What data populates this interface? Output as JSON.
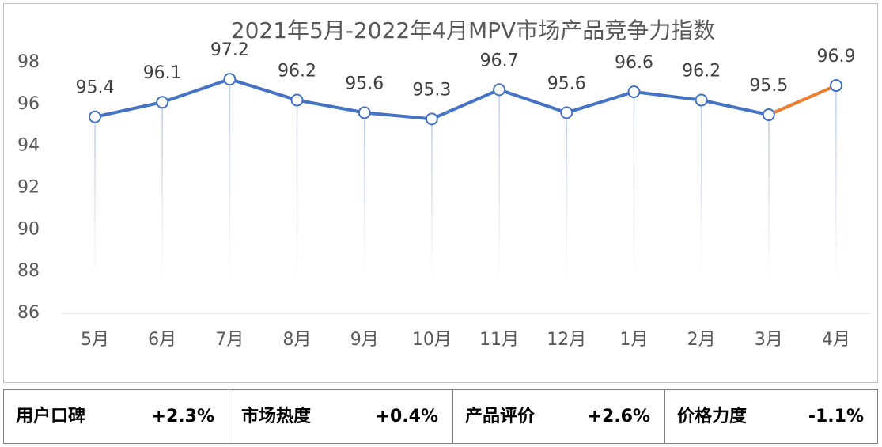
{
  "chart_data": {
    "type": "line",
    "title": "2021年5月-2022年4月MPV市场产品竞争力指数",
    "categories": [
      "5月",
      "6月",
      "7月",
      "8月",
      "9月",
      "10月",
      "11月",
      "12月",
      "1月",
      "2月",
      "3月",
      "4月"
    ],
    "values": [
      95.4,
      96.1,
      97.2,
      96.2,
      95.6,
      95.3,
      96.7,
      95.6,
      96.6,
      96.2,
      95.5,
      96.9
    ],
    "color": "#4472c4",
    "last_segment_color": "#ed7d31",
    "ylim": [
      86,
      98
    ],
    "yticks": [
      86,
      88,
      90,
      92,
      94,
      96,
      98
    ],
    "drop_lines": true
  },
  "indicators": [
    {
      "label": "用户口碑",
      "value": "+2.3%"
    },
    {
      "label": "市场热度",
      "value": "+0.4%"
    },
    {
      "label": "产品评价",
      "value": "+2.6%"
    },
    {
      "label": "价格力度",
      "value": "-1.1%"
    }
  ]
}
